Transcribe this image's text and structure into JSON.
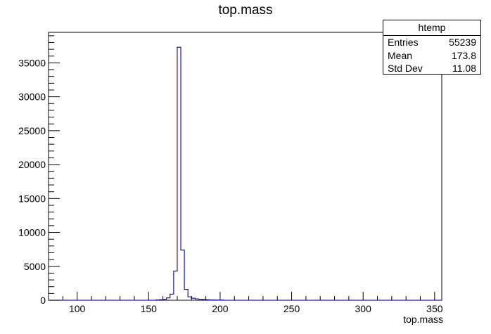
{
  "chart_data": {
    "type": "bar",
    "title": "top.mass",
    "xlabel": "top.mass",
    "ylabel": "",
    "xlim": [
      80,
      355
    ],
    "ylim": [
      0,
      39500
    ],
    "x_ticks": [
      100,
      150,
      200,
      250,
      300,
      350
    ],
    "y_ticks": [
      0,
      5000,
      10000,
      15000,
      20000,
      25000,
      30000,
      35000
    ],
    "bin_width": 2.5,
    "bins": [
      {
        "x": 155.0,
        "count": 50
      },
      {
        "x": 157.5,
        "count": 80
      },
      {
        "x": 160.0,
        "count": 150
      },
      {
        "x": 162.5,
        "count": 350
      },
      {
        "x": 165.0,
        "count": 900
      },
      {
        "x": 167.5,
        "count": 4300
      },
      {
        "x": 170.0,
        "count": 37300
      },
      {
        "x": 172.5,
        "count": 7400
      },
      {
        "x": 175.0,
        "count": 1600
      },
      {
        "x": 177.5,
        "count": 500
      },
      {
        "x": 180.0,
        "count": 300
      },
      {
        "x": 182.5,
        "count": 200
      },
      {
        "x": 185.0,
        "count": 150
      },
      {
        "x": 187.5,
        "count": 100
      },
      {
        "x": 190.0,
        "count": 80
      },
      {
        "x": 192.5,
        "count": 60
      },
      {
        "x": 195.0,
        "count": 50
      },
      {
        "x": 197.5,
        "count": 40
      },
      {
        "x": 200.0,
        "count": 35
      }
    ],
    "line_color": "#1a1a9e",
    "grid": false
  },
  "stats_box": {
    "title": "htemp",
    "entries_label": "Entries",
    "entries_value": "55239",
    "mean_label": "Mean",
    "mean_value": "173.8",
    "stddev_label": "Std Dev",
    "stddev_value": "11.08"
  }
}
